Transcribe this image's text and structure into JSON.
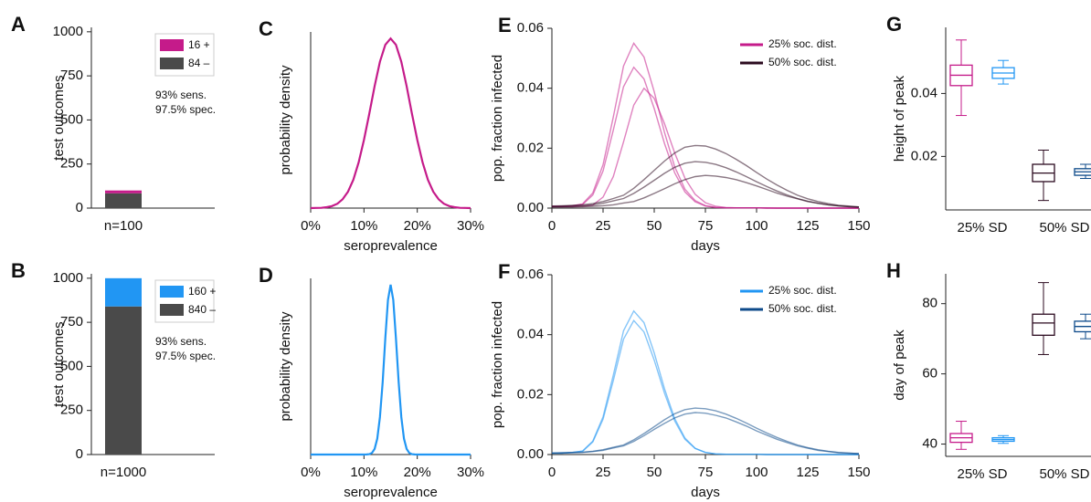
{
  "chart_data": [
    {
      "type": "bar",
      "label": "A",
      "ylabel": "test outcomes",
      "categories": [
        "n=100"
      ],
      "series": [
        {
          "name": "16 +",
          "color": "#c51b8a",
          "values": [
            16
          ]
        },
        {
          "name": "84 –",
          "color": "#4a4a4a",
          "values": [
            84
          ]
        }
      ],
      "annotations": [
        "93% sens.",
        "97.5% spec."
      ],
      "ylim": [
        0,
        1025
      ],
      "yticks": [
        0,
        250,
        500,
        750,
        1000
      ]
    },
    {
      "type": "line",
      "label": "C",
      "ylabel": "probability density",
      "xlabel": "seroprevalence",
      "x": [
        0,
        1,
        2,
        3,
        4,
        5,
        6,
        7,
        8,
        9,
        10,
        11,
        12,
        13,
        14,
        15,
        16,
        17,
        18,
        19,
        20,
        21,
        22,
        23,
        24,
        25,
        26,
        27,
        28,
        29,
        30
      ],
      "series": [
        {
          "color": "#c51b8a",
          "values": [
            0,
            0.0001,
            0.0002,
            0.0006,
            0.0013,
            0.0028,
            0.0056,
            0.0104,
            0.018,
            0.029,
            0.0433,
            0.0601,
            0.0776,
            0.0931,
            0.1039,
            0.1078,
            0.1039,
            0.0931,
            0.0776,
            0.0601,
            0.0433,
            0.029,
            0.018,
            0.0104,
            0.0056,
            0.0028,
            0.0013,
            0.0006,
            0.0002,
            0.0001,
            0
          ]
        }
      ],
      "xlim": [
        0,
        30
      ],
      "xticks": [
        {
          "value": 0,
          "label": "0%"
        },
        {
          "value": 10,
          "label": "10%"
        },
        {
          "value": 20,
          "label": "20%"
        },
        {
          "value": 30,
          "label": "30%"
        }
      ],
      "ylim": [
        0,
        0.112
      ]
    },
    {
      "type": "line",
      "label": "E",
      "ylabel": "pop. fraction infected",
      "xlabel": "days",
      "x": [
        0,
        5,
        10,
        15,
        20,
        25,
        30,
        35,
        40,
        45,
        50,
        55,
        60,
        65,
        70,
        75,
        80,
        85,
        90,
        95,
        100,
        105,
        110,
        115,
        120,
        125,
        130,
        135,
        140,
        145,
        150
      ],
      "series": [
        {
          "name": "25% soc. dist.",
          "color": "#c51b8a",
          "runs": [
            [
              0.0005,
              0.0005,
              0.0007,
              0.0012,
              0.0044,
              0.0124,
              0.026,
              0.0405,
              0.047,
              0.0431,
              0.0332,
              0.0216,
              0.0118,
              0.0054,
              0.0021,
              0.0007,
              0.0002,
              0.0001,
              0.0001,
              0.0001,
              0.0001,
              0,
              0,
              0,
              0,
              0,
              0,
              0,
              0,
              0,
              0
            ],
            [
              0.0006,
              0.0006,
              0.0008,
              0.0014,
              0.0051,
              0.0145,
              0.0304,
              0.0474,
              0.055,
              0.0504,
              0.0388,
              0.0253,
              0.0138,
              0.0063,
              0.0025,
              0.0008,
              0.0002,
              0.0001,
              0.0001,
              0.0001,
              0.0001,
              0,
              0,
              0,
              0,
              0,
              0,
              0,
              0,
              0,
              0
            ],
            [
              0.0005,
              0.0005,
              0.0005,
              0.0006,
              0.001,
              0.0037,
              0.0105,
              0.0221,
              0.0344,
              0.04,
              0.0366,
              0.0282,
              0.0184,
              0.01,
              0.0046,
              0.0018,
              0.0006,
              0.0002,
              0.0001,
              0.0001,
              0.0001,
              0.0001,
              0,
              0,
              0,
              0,
              0,
              0,
              0,
              0,
              0
            ]
          ]
        },
        {
          "name": "50% soc. dist.",
          "color": "#2b0a1f",
          "runs": [
            [
              0.0005,
              0.0006,
              0.0007,
              0.0008,
              0.0011,
              0.0016,
              0.0024,
              0.0032,
              0.0049,
              0.007,
              0.0093,
              0.0116,
              0.0136,
              0.015,
              0.0155,
              0.0153,
              0.0146,
              0.0135,
              0.0121,
              0.0105,
              0.0088,
              0.0072,
              0.0057,
              0.0044,
              0.0032,
              0.0023,
              0.0016,
              0.0011,
              0.0007,
              0.0005,
              0.0003
            ],
            [
              0.0007,
              0.0008,
              0.0009,
              0.0011,
              0.0015,
              0.0022,
              0.0032,
              0.0043,
              0.0066,
              0.0095,
              0.0126,
              0.0157,
              0.0184,
              0.0203,
              0.0209,
              0.0207,
              0.0197,
              0.0182,
              0.0163,
              0.0142,
              0.0119,
              0.0097,
              0.0077,
              0.0059,
              0.0043,
              0.0031,
              0.0022,
              0.0015,
              0.0009,
              0.0007,
              0.0004
            ],
            [
              0.0004,
              0.0004,
              0.0004,
              0.0005,
              0.0006,
              0.0008,
              0.0011,
              0.0017,
              0.0022,
              0.0034,
              0.0049,
              0.0065,
              0.0081,
              0.0095,
              0.0105,
              0.0109,
              0.0107,
              0.0102,
              0.0095,
              0.0085,
              0.0074,
              0.0062,
              0.005,
              0.004,
              0.0031,
              0.0022,
              0.0016,
              0.0011,
              0.0008,
              0.0005,
              0.0004
            ]
          ]
        }
      ],
      "xlim": [
        0,
        150
      ],
      "xticks": [
        0,
        25,
        50,
        75,
        100,
        125,
        150
      ],
      "ylim": [
        0,
        0.06
      ],
      "yticks": [
        {
          "value": 0,
          "label": "0.00"
        },
        0.02,
        0.04,
        0.06
      ]
    },
    {
      "type": "box",
      "label": "G",
      "ylabel": "height of peak",
      "groups": [
        {
          "label": "25% SD",
          "boxes": [
            {
              "color": "#c51b8a",
              "whislo": 0.033,
              "q1": 0.0425,
              "med": 0.0458,
              "q3": 0.049,
              "whishi": 0.057
            },
            {
              "color": "#2196f3",
              "whislo": 0.043,
              "q1": 0.0448,
              "med": 0.0465,
              "q3": 0.0482,
              "whishi": 0.0505
            }
          ]
        },
        {
          "label": "50% SD",
          "boxes": [
            {
              "color": "#2b0a1f",
              "whislo": 0.006,
              "q1": 0.012,
              "med": 0.0147,
              "q3": 0.0175,
              "whishi": 0.022
            },
            {
              "color": "#0d4a8a",
              "whislo": 0.013,
              "q1": 0.014,
              "med": 0.0151,
              "q3": 0.0161,
              "whishi": 0.0175
            }
          ]
        }
      ],
      "ylim": [
        0.003,
        0.061
      ],
      "yticks": [
        0.02,
        0.04
      ]
    },
    {
      "type": "bar",
      "label": "B",
      "ylabel": "test outcomes",
      "categories": [
        "n=1000"
      ],
      "series": [
        {
          "name": "160 +",
          "color": "#2196f3",
          "values": [
            160
          ]
        },
        {
          "name": "840 –",
          "color": "#4a4a4a",
          "values": [
            840
          ]
        }
      ],
      "annotations": [
        "93% sens.",
        "97.5% spec."
      ],
      "ylim": [
        0,
        1025
      ],
      "yticks": [
        0,
        250,
        500,
        750,
        1000
      ]
    },
    {
      "type": "line",
      "label": "D",
      "ylabel": "probability density",
      "xlabel": "seroprevalence",
      "x": [
        0,
        5,
        10,
        10.5,
        11,
        11.5,
        12,
        12.5,
        13,
        13.5,
        14,
        14.5,
        15,
        15.5,
        16,
        16.5,
        17,
        17.5,
        18,
        18.5,
        19,
        19.5,
        20,
        25,
        30
      ],
      "series": [
        {
          "color": "#2196f3",
          "values": [
            0,
            0,
            0,
            0.0002,
            0.0008,
            0.0034,
            0.0116,
            0.0327,
            0.0764,
            0.148,
            0.238,
            0.316,
            0.347,
            0.316,
            0.238,
            0.148,
            0.0764,
            0.0327,
            0.0116,
            0.0034,
            0.0008,
            0.0002,
            0,
            0,
            0
          ]
        }
      ],
      "xlim": [
        0,
        30
      ],
      "xticks": [
        {
          "value": 0,
          "label": "0%"
        },
        {
          "value": 10,
          "label": "10%"
        },
        {
          "value": 20,
          "label": "20%"
        },
        {
          "value": 30,
          "label": "30%"
        }
      ],
      "ylim": [
        0,
        0.36
      ]
    },
    {
      "type": "line",
      "label": "F",
      "ylabel": "pop. fraction infected",
      "xlabel": "days",
      "x": [
        0,
        5,
        10,
        15,
        20,
        25,
        30,
        35,
        40,
        45,
        50,
        55,
        60,
        65,
        70,
        75,
        80,
        85,
        90,
        95,
        100,
        105,
        110,
        115,
        120,
        125,
        130,
        135,
        140,
        145,
        150
      ],
      "series": [
        {
          "name": "25% soc. dist.",
          "color": "#2196f3",
          "runs": [
            [
              0.0005,
              0.0005,
              0.0007,
              0.0012,
              0.0045,
              0.0126,
              0.0265,
              0.0413,
              0.0479,
              0.044,
              0.0339,
              0.022,
              0.012,
              0.0055,
              0.0021,
              0.0007,
              0.0002,
              0.0001,
              0.0001,
              0.0001,
              0.0001,
              0,
              0,
              0,
              0,
              0,
              0,
              0,
              0,
              0,
              0
            ],
            [
              0.0005,
              0.0005,
              0.0007,
              0.0011,
              0.0042,
              0.0118,
              0.0247,
              0.0385,
              0.0447,
              0.0409,
              0.0315,
              0.0205,
              0.0112,
              0.0051,
              0.002,
              0.0007,
              0.0002,
              0.0001,
              0.0001,
              0.0001,
              0.0001,
              0,
              0,
              0,
              0,
              0,
              0,
              0,
              0,
              0,
              0
            ]
          ]
        },
        {
          "name": "50% soc. dist.",
          "color": "#0d4a8a",
          "runs": [
            [
              0.0005,
              0.0006,
              0.0007,
              0.0008,
              0.0011,
              0.0016,
              0.0024,
              0.0032,
              0.0049,
              0.007,
              0.0093,
              0.0116,
              0.0136,
              0.015,
              0.0155,
              0.0153,
              0.0146,
              0.0135,
              0.0121,
              0.0105,
              0.0088,
              0.0072,
              0.0057,
              0.0044,
              0.0032,
              0.0023,
              0.0016,
              0.0011,
              0.0007,
              0.0005,
              0.0003
            ],
            [
              0.0005,
              0.0005,
              0.0006,
              0.0007,
              0.001,
              0.0014,
              0.0022,
              0.0029,
              0.0044,
              0.0063,
              0.0084,
              0.0104,
              0.0122,
              0.0135,
              0.014,
              0.0138,
              0.0131,
              0.0122,
              0.0109,
              0.0095,
              0.0079,
              0.0065,
              0.0051,
              0.004,
              0.0029,
              0.0021,
              0.0014,
              0.001,
              0.0006,
              0.0005,
              0.0003
            ]
          ]
        }
      ],
      "xlim": [
        0,
        150
      ],
      "xticks": [
        0,
        25,
        50,
        75,
        100,
        125,
        150
      ],
      "ylim": [
        0,
        0.06
      ],
      "yticks": [
        {
          "value": 0,
          "label": "0.00"
        },
        0.02,
        0.04,
        0.06
      ]
    },
    {
      "type": "box",
      "label": "H",
      "ylabel": "day of peak",
      "groups": [
        {
          "label": "25% SD",
          "boxes": [
            {
              "color": "#c51b8a",
              "whislo": 38.5,
              "q1": 40.5,
              "med": 41.8,
              "q3": 43,
              "whishi": 46.5
            },
            {
              "color": "#2196f3",
              "whislo": 40.2,
              "q1": 40.8,
              "med": 41.3,
              "q3": 41.8,
              "whishi": 42.4
            }
          ]
        },
        {
          "label": "50% SD",
          "boxes": [
            {
              "color": "#2b0a1f",
              "whislo": 65.5,
              "q1": 71,
              "med": 74.5,
              "q3": 77,
              "whishi": 86
            },
            {
              "color": "#0d4a8a",
              "whislo": 70,
              "q1": 72,
              "med": 73.5,
              "q3": 75,
              "whishi": 77
            }
          ]
        }
      ],
      "ylim": [
        36.5,
        88.5
      ],
      "yticks": [
        40,
        60,
        80
      ]
    }
  ]
}
